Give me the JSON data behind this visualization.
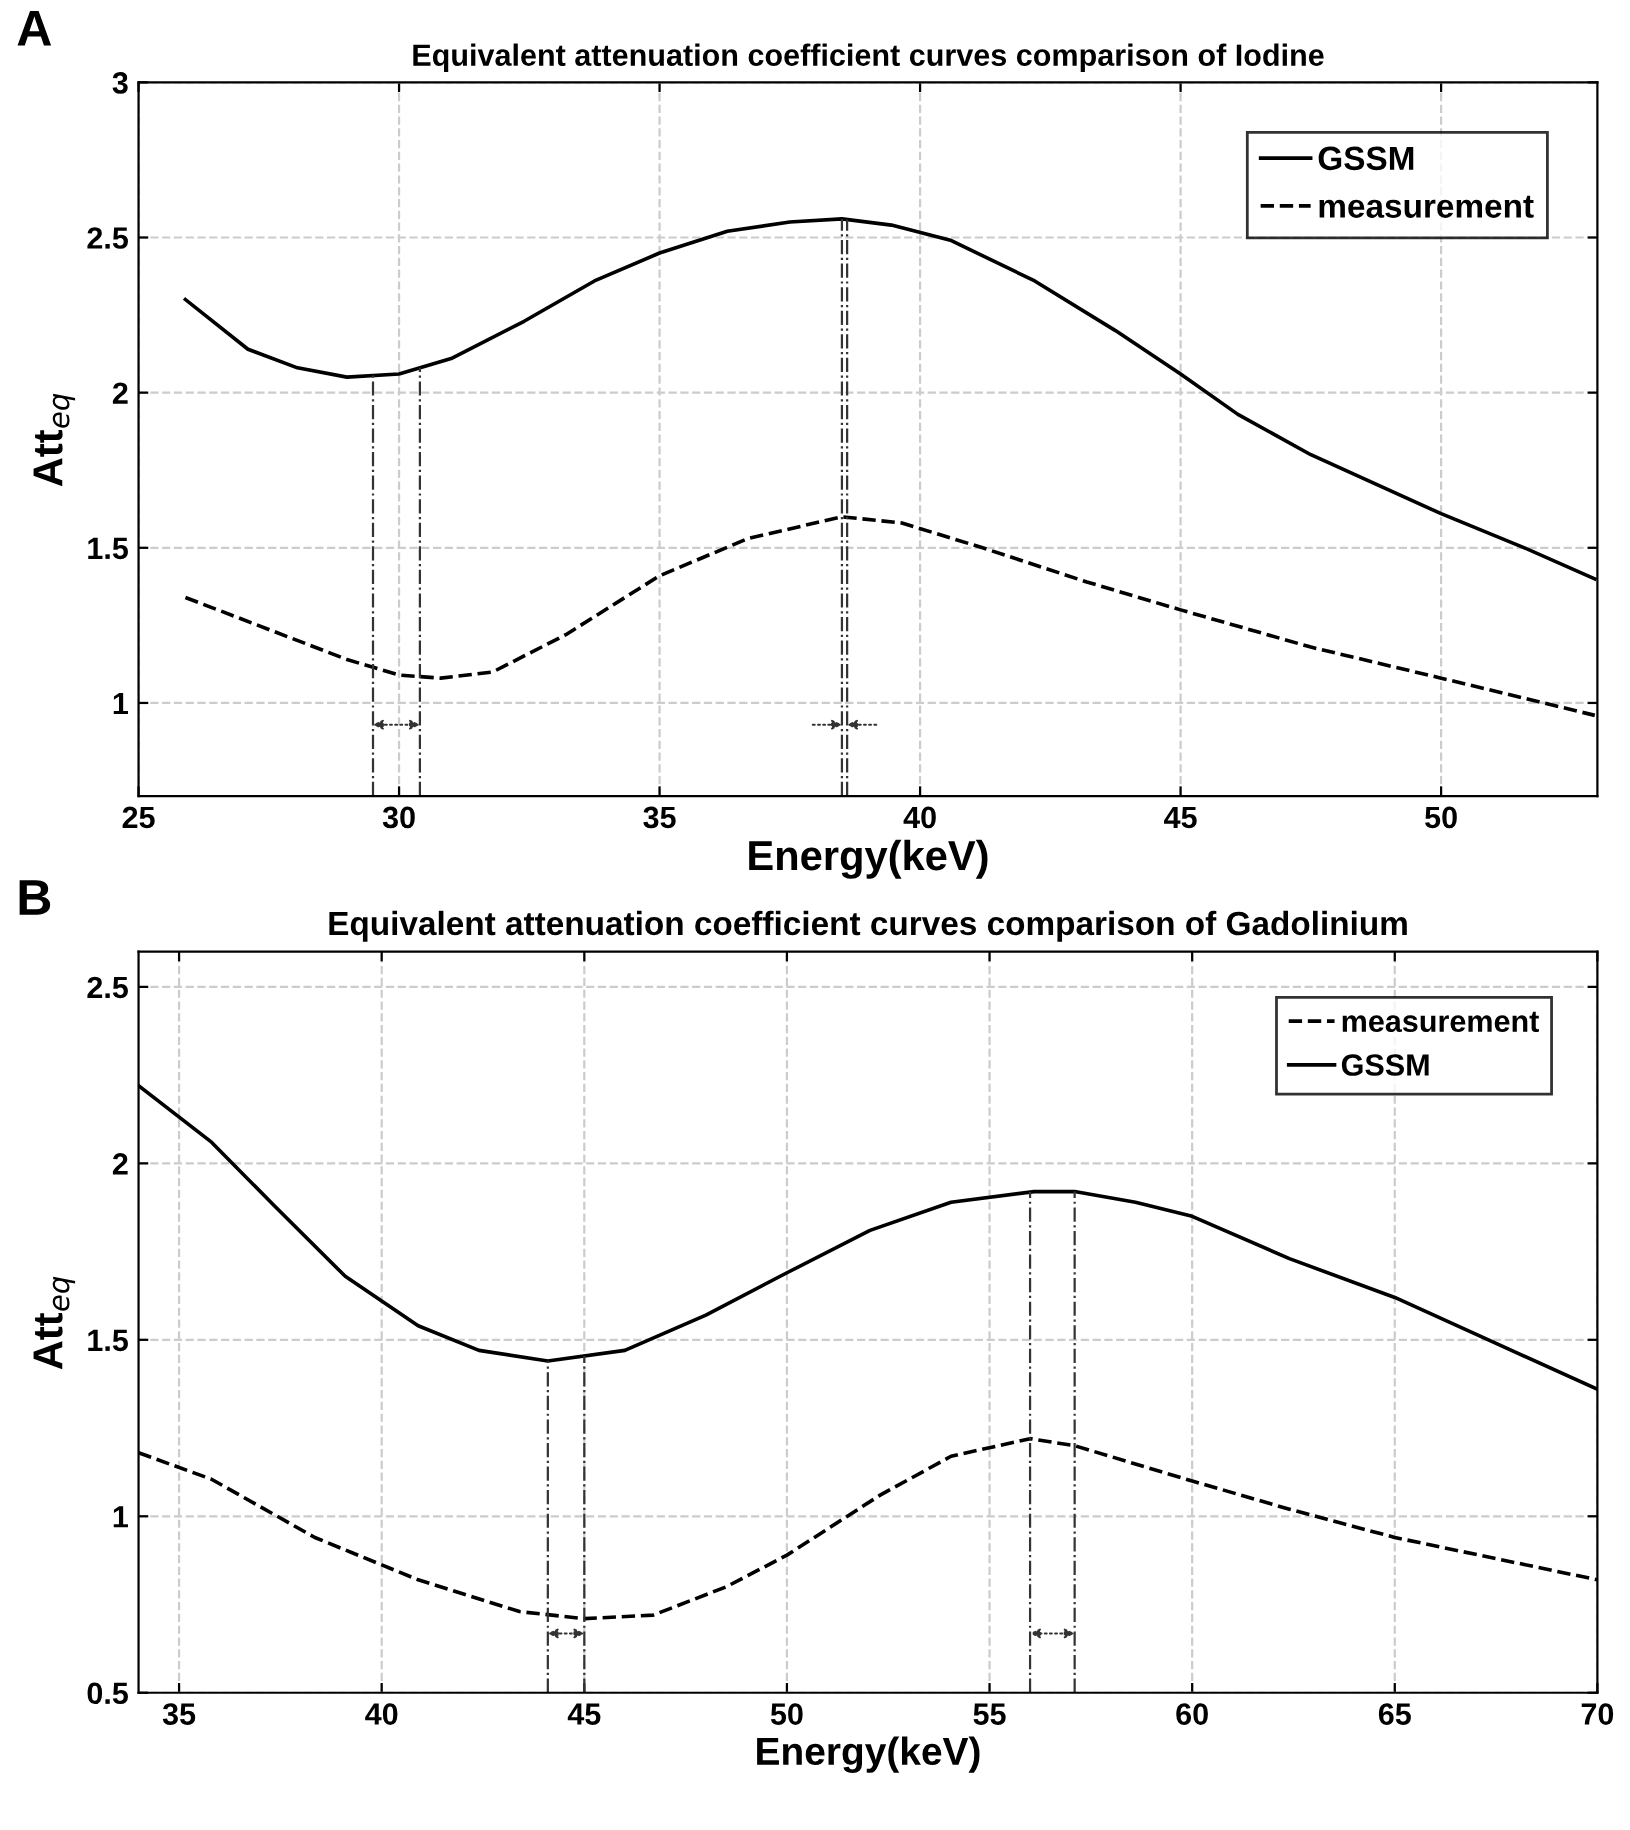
{
  "chart_data": [
    {
      "type": "line",
      "title": "Equivalent attenuation coefficient curves comparison of Iodine",
      "xlabel": "Energy(keV)",
      "ylabel": "Att$_{eq}$",
      "annotations": [
        "A"
      ],
      "xlim": [
        25,
        53
      ],
      "ylim": [
        0.7,
        3
      ],
      "xticks": [
        25,
        30,
        35,
        40,
        45,
        50
      ],
      "yticks": [
        1,
        1.5,
        2,
        2.5,
        3
      ],
      "grid": true,
      "legend": "top right",
      "marker": "none",
      "series": [
        {
          "name": "GSSM",
          "color": "#000000",
          "line_style": "solid",
          "x": [
            25.9,
            27.1,
            28.05,
            29.0,
            30.0,
            31.0,
            32.4,
            33.75,
            35,
            36.3,
            37.5,
            38.5,
            39.45,
            40.6,
            42.2,
            43.75,
            45,
            46.1,
            47.5,
            50,
            51.6,
            52.95
          ],
          "values": [
            2.3,
            2.14,
            2.08,
            2.05,
            2.06,
            2.11,
            2.23,
            2.36,
            2.45,
            2.52,
            2.55,
            2.56,
            2.54,
            2.49,
            2.36,
            2.2,
            2.06,
            1.93,
            1.8,
            1.61,
            1.5,
            1.4
          ]
        },
        {
          "name": "measurement",
          "color": "#000000",
          "line_style": "dashed",
          "x": [
            25.9,
            27.45,
            29.0,
            30.0,
            30.8,
            31.8,
            33.2,
            35,
            36.7,
            38.5,
            39.65,
            41.2,
            43.2,
            45,
            47.5,
            50,
            52.95
          ],
          "values": [
            1.34,
            1.24,
            1.14,
            1.09,
            1.08,
            1.1,
            1.22,
            1.41,
            1.53,
            1.6,
            1.58,
            1.5,
            1.39,
            1.3,
            1.18,
            1.08,
            0.96
          ]
        }
      ],
      "ref_lines": [
        {
          "axis": "x",
          "value": 29.5,
          "color": "#333333"
        },
        {
          "axis": "x",
          "value": 30.4,
          "color": "#333333"
        },
        {
          "axis": "x",
          "value": 38.5,
          "color": "#333333"
        },
        {
          "axis": "x",
          "value": 38.6,
          "color": "#333333"
        }
      ]
    },
    {
      "type": "line",
      "title": "Equivalent attenuation coefficient curves comparison of Gadolinium",
      "xlabel": "Energy(keV)",
      "ylabel": "Att$_{eq}$",
      "annotations": [
        "B"
      ],
      "xlim": [
        34,
        70
      ],
      "ylim": [
        0.5,
        2.6
      ],
      "xticks": [
        35,
        40,
        45,
        50,
        55,
        60,
        65,
        70
      ],
      "yticks": [
        0.5,
        1,
        1.5,
        2,
        2.5
      ],
      "grid": true,
      "legend": "top right",
      "marker": "none",
      "series": [
        {
          "name": "measurement",
          "color": "#000000",
          "line_style": "dashed",
          "x": [
            34.0,
            35.8,
            38.35,
            40.9,
            43.4,
            45,
            46.7,
            48.5,
            50,
            52.3,
            54.05,
            56,
            57.1,
            60,
            62.4,
            65,
            67.5,
            70
          ],
          "values": [
            1.18,
            1.105,
            0.94,
            0.82,
            0.73,
            0.71,
            0.72,
            0.8,
            0.89,
            1.06,
            1.17,
            1.22,
            1.2,
            1.1,
            1.02,
            0.94,
            0.88,
            0.82
          ]
        },
        {
          "name": "GSSM",
          "color": "#000000",
          "line_style": "solid",
          "x": [
            34.0,
            35.8,
            37.35,
            39.1,
            40.9,
            42.4,
            44.1,
            46.0,
            48.0,
            50,
            52.05,
            54.05,
            56.1,
            57.1,
            58.6,
            60,
            62.4,
            65,
            67.5,
            70
          ],
          "values": [
            2.22,
            2.06,
            1.88,
            1.68,
            1.54,
            1.47,
            1.44,
            1.47,
            1.57,
            1.69,
            1.81,
            1.89,
            1.92,
            1.92,
            1.89,
            1.85,
            1.73,
            1.62,
            1.49,
            1.36
          ]
        }
      ],
      "ref_lines": [
        {
          "axis": "x",
          "value": 44.1,
          "color": "#333333"
        },
        {
          "axis": "x",
          "value": 45.0,
          "color": "#333333"
        },
        {
          "axis": "x",
          "value": 56.0,
          "color": "#333333"
        },
        {
          "axis": "x",
          "value": 57.1,
          "color": "#333333"
        }
      ]
    }
  ]
}
